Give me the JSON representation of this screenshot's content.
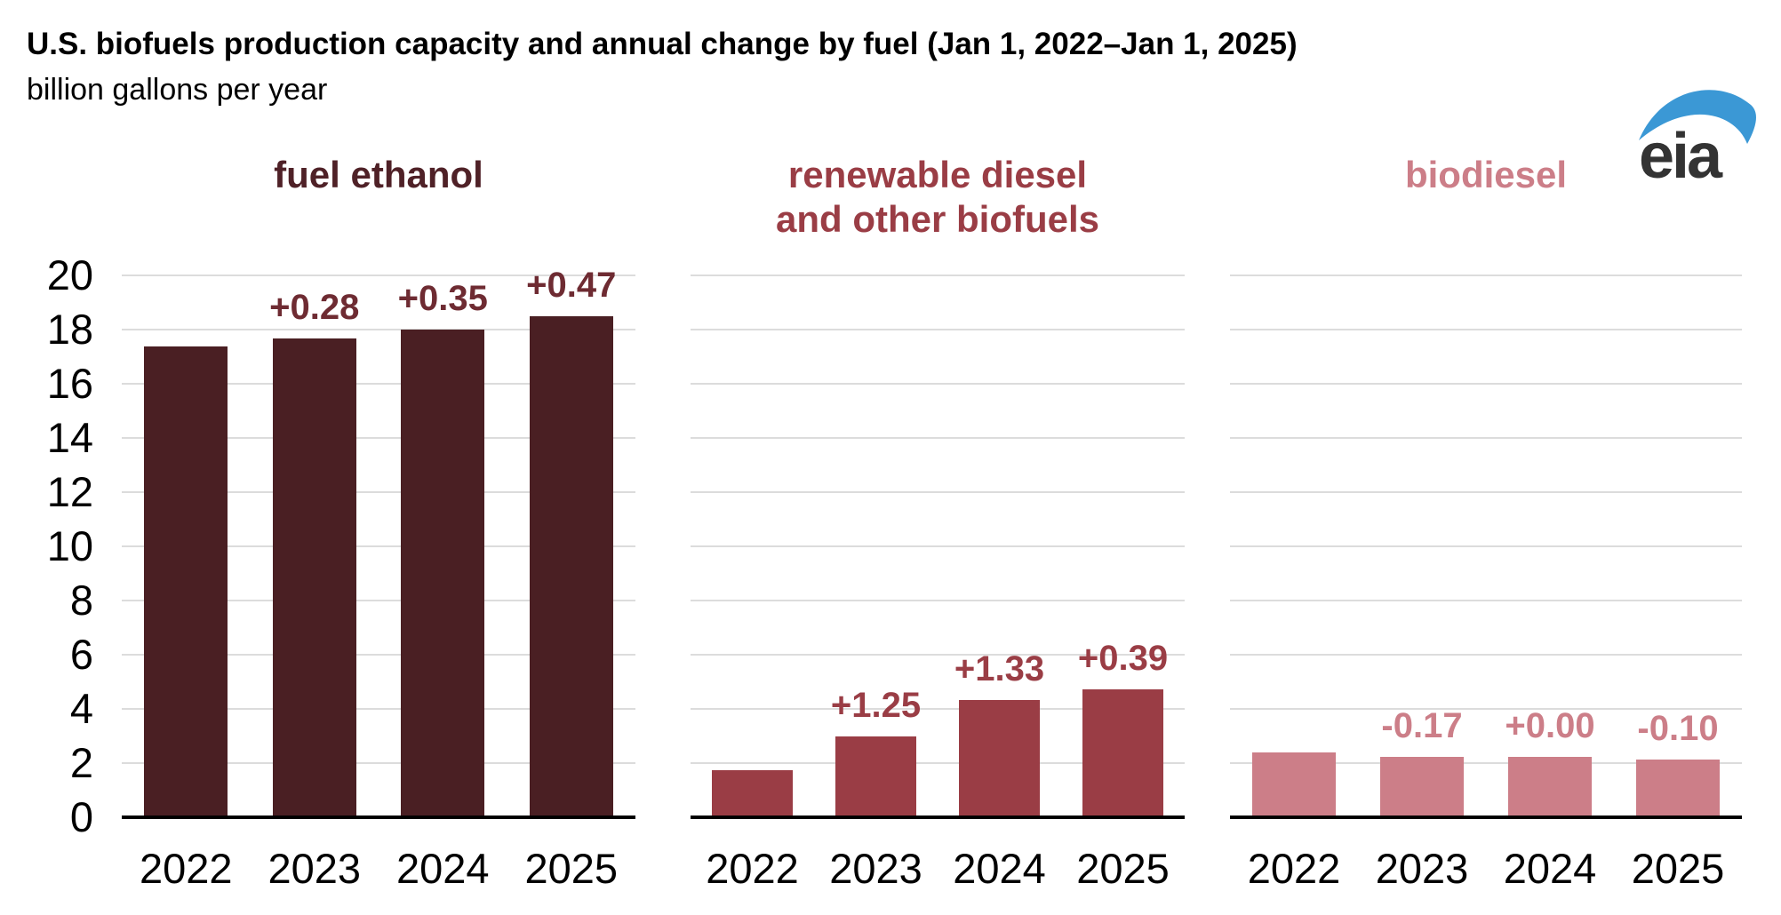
{
  "header": {
    "title": "U.S. biofuels production capacity and annual change by fuel (Jan 1, 2022–Jan 1, 2025)",
    "subtitle": "billion gallons per year",
    "logo": "eia"
  },
  "colors": {
    "title_text": "#000000",
    "axis_text": "#000000",
    "gridline": "#dcdcdc",
    "axis_line": "#000000",
    "logo_swoosh": "#3b98d5",
    "logo_text": "#333333"
  },
  "chart_data": {
    "type": "bar",
    "categories": [
      "2022",
      "2023",
      "2024",
      "2025"
    ],
    "ylabel": "billion gallons per year",
    "ylim": [
      0,
      20
    ],
    "yticks": [
      0,
      2,
      4,
      6,
      8,
      10,
      12,
      14,
      16,
      18,
      20
    ],
    "grid": "horizontal",
    "legend": "none",
    "panels": [
      {
        "title_lines": [
          "fuel ethanol"
        ],
        "bar_color": "#4a1f23",
        "title_color": "#4f2127",
        "annotation_color": "#6e2b32",
        "values": [
          17.38,
          17.66,
          18.01,
          18.48
        ],
        "annotations": [
          "",
          "+0.28",
          "+0.35",
          "+0.47"
        ]
      },
      {
        "title_lines": [
          "renewable diesel",
          "and other biofuels"
        ],
        "bar_color": "#9a3d45",
        "title_color": "#9a3d45",
        "annotation_color": "#9a3d45",
        "values": [
          1.75,
          3.0,
          4.33,
          4.72
        ],
        "annotations": [
          "",
          "+1.25",
          "+1.33",
          "+0.39"
        ]
      },
      {
        "title_lines": [
          "biodiesel"
        ],
        "bar_color": "#cc7e88",
        "title_color": "#cc7e88",
        "annotation_color": "#cc7e88",
        "values": [
          2.4,
          2.23,
          2.23,
          2.13
        ],
        "annotations": [
          "",
          "-0.17",
          "+0.00",
          "-0.10"
        ]
      }
    ]
  }
}
